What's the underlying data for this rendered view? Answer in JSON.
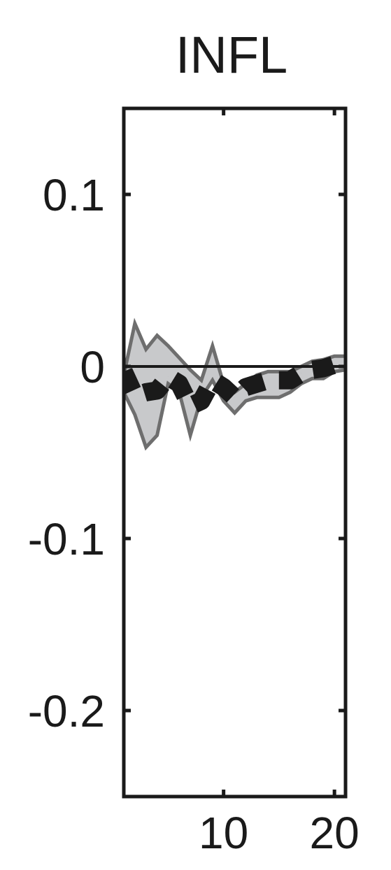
{
  "chart_data": {
    "type": "line",
    "title": "INFL",
    "xlabel": "",
    "ylabel": "",
    "xlim": [
      1,
      21
    ],
    "ylim": [
      -0.25,
      0.15
    ],
    "xticks": [
      10,
      20
    ],
    "xtick_labels": [
      "10",
      "20"
    ],
    "yticks": [
      0.1,
      0,
      -0.1,
      -0.2
    ],
    "ytick_labels": [
      "0.1",
      "0",
      "-0.1",
      "-0.2"
    ],
    "grid": false,
    "legend": "none",
    "zero_line": 0,
    "band": {
      "x": [
        1,
        2,
        3,
        4,
        5,
        6,
        7,
        8,
        9,
        10,
        11,
        12,
        13,
        14,
        15,
        16,
        17,
        18,
        19,
        20,
        21
      ],
      "upper": [
        -0.005,
        0.025,
        0.01,
        0.018,
        0.012,
        0.005,
        -0.002,
        -0.008,
        0.012,
        -0.01,
        -0.015,
        -0.01,
        -0.005,
        -0.003,
        -0.003,
        -0.003,
        0.0,
        0.003,
        0.004,
        0.006,
        0.006
      ],
      "lower": [
        -0.015,
        -0.028,
        -0.047,
        -0.04,
        -0.01,
        -0.015,
        -0.04,
        -0.018,
        -0.008,
        -0.02,
        -0.027,
        -0.02,
        -0.018,
        -0.018,
        -0.018,
        -0.015,
        -0.01,
        -0.007,
        -0.007,
        -0.003,
        -0.002
      ]
    },
    "series": [
      {
        "style": "dashed",
        "x": [
          1,
          2,
          3,
          4,
          5,
          6,
          7,
          8,
          9,
          10,
          11,
          12,
          13,
          14,
          15,
          16,
          17,
          18,
          19,
          20,
          21
        ],
        "values": [
          -0.003,
          -0.017,
          -0.015,
          -0.014,
          -0.006,
          -0.01,
          -0.023,
          -0.02,
          -0.008,
          -0.012,
          -0.018,
          -0.012,
          -0.01,
          -0.008,
          -0.008,
          -0.008,
          -0.004,
          -0.002,
          -0.001,
          0.001,
          0.001
        ]
      }
    ]
  },
  "colors": {
    "axis": "#1a1a1a",
    "band_fill": "#c8c9cb",
    "band_edge": "#6e6e6e",
    "series": "#1a1a1a",
    "zero_line": "#1a1a1a"
  }
}
